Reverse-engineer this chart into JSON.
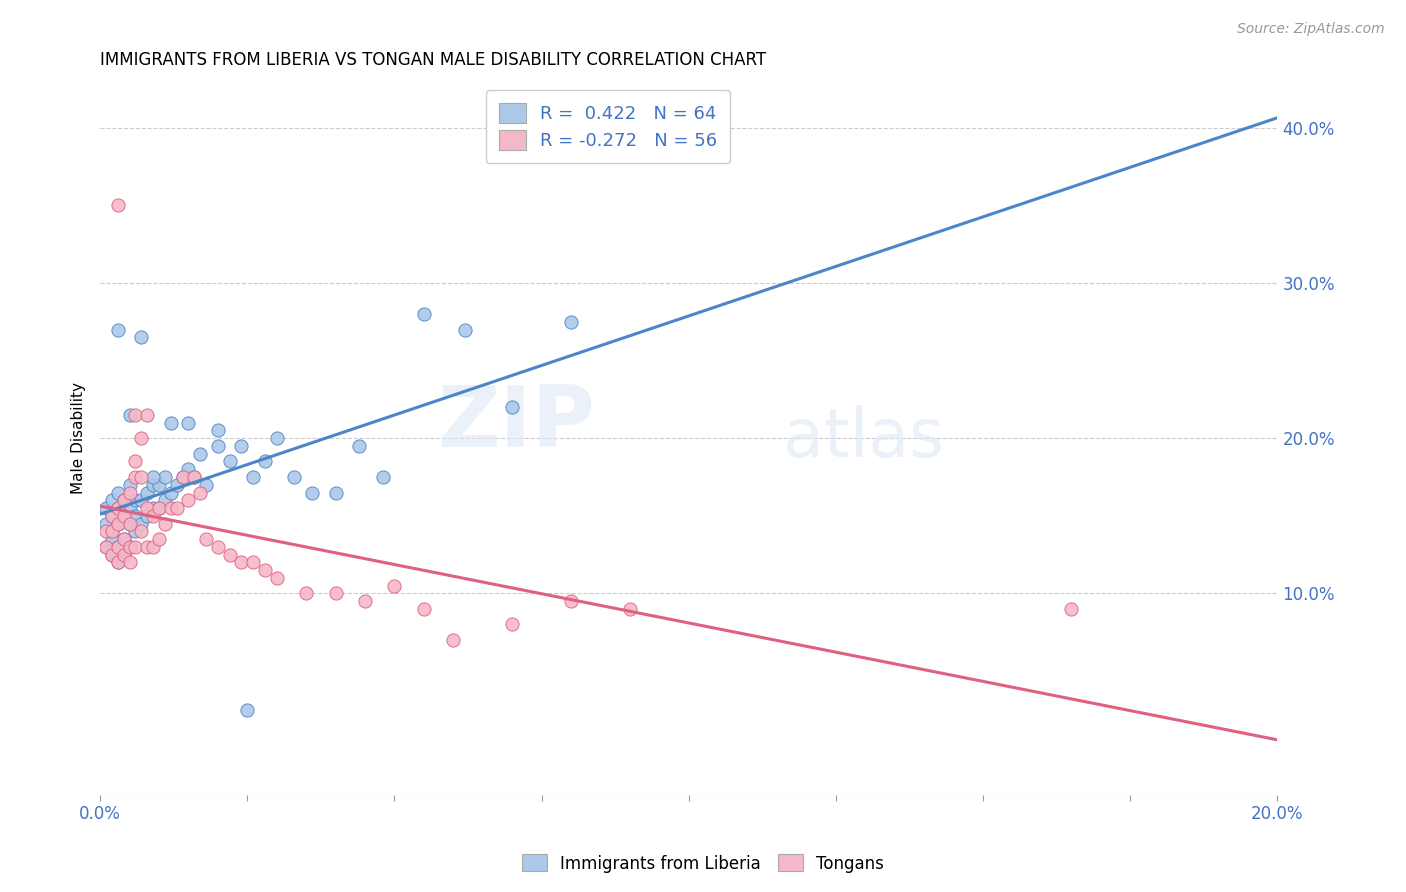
{
  "title": "IMMIGRANTS FROM LIBERIA VS TONGAN MALE DISABILITY CORRELATION CHART",
  "source": "Source: ZipAtlas.com",
  "ylabel": "Male Disability",
  "right_yticks": [
    "10.0%",
    "20.0%",
    "30.0%",
    "40.0%"
  ],
  "right_ytick_vals": [
    0.1,
    0.2,
    0.3,
    0.4
  ],
  "xlim": [
    0.0,
    0.2
  ],
  "ylim": [
    -0.03,
    0.43
  ],
  "blue_R": 0.422,
  "blue_N": 64,
  "pink_R": -0.272,
  "pink_N": 56,
  "blue_color": "#adc8e8",
  "pink_color": "#f5b8c8",
  "blue_line_color": "#4a86c8",
  "pink_line_color": "#e06080",
  "watermark_zip": "ZIP",
  "watermark_atlas": "atlas",
  "legend_label_blue": "Immigrants from Liberia",
  "legend_label_pink": "Tongans",
  "blue_x": [
    0.001,
    0.001,
    0.001,
    0.002,
    0.002,
    0.002,
    0.002,
    0.002,
    0.003,
    0.003,
    0.003,
    0.003,
    0.003,
    0.004,
    0.004,
    0.004,
    0.004,
    0.005,
    0.005,
    0.005,
    0.005,
    0.006,
    0.006,
    0.006,
    0.007,
    0.007,
    0.008,
    0.008,
    0.009,
    0.009,
    0.01,
    0.01,
    0.011,
    0.011,
    0.012,
    0.013,
    0.014,
    0.015,
    0.016,
    0.017,
    0.018,
    0.02,
    0.022,
    0.024,
    0.026,
    0.028,
    0.03,
    0.033,
    0.036,
    0.04,
    0.044,
    0.048,
    0.055,
    0.062,
    0.07,
    0.08,
    0.003,
    0.005,
    0.007,
    0.009,
    0.012,
    0.015,
    0.02,
    0.025
  ],
  "blue_y": [
    0.13,
    0.145,
    0.155,
    0.125,
    0.14,
    0.15,
    0.16,
    0.135,
    0.12,
    0.13,
    0.145,
    0.155,
    0.165,
    0.125,
    0.135,
    0.15,
    0.16,
    0.13,
    0.145,
    0.155,
    0.17,
    0.14,
    0.15,
    0.16,
    0.145,
    0.16,
    0.15,
    0.165,
    0.155,
    0.17,
    0.155,
    0.17,
    0.16,
    0.175,
    0.165,
    0.17,
    0.175,
    0.18,
    0.175,
    0.19,
    0.17,
    0.195,
    0.185,
    0.195,
    0.175,
    0.185,
    0.2,
    0.175,
    0.165,
    0.165,
    0.195,
    0.175,
    0.28,
    0.27,
    0.22,
    0.275,
    0.27,
    0.215,
    0.265,
    0.175,
    0.21,
    0.21,
    0.205,
    0.025
  ],
  "pink_x": [
    0.001,
    0.001,
    0.002,
    0.002,
    0.002,
    0.003,
    0.003,
    0.003,
    0.003,
    0.004,
    0.004,
    0.004,
    0.004,
    0.005,
    0.005,
    0.005,
    0.005,
    0.006,
    0.006,
    0.006,
    0.007,
    0.007,
    0.007,
    0.008,
    0.008,
    0.009,
    0.009,
    0.01,
    0.01,
    0.011,
    0.012,
    0.013,
    0.014,
    0.015,
    0.016,
    0.017,
    0.018,
    0.02,
    0.022,
    0.024,
    0.026,
    0.028,
    0.03,
    0.035,
    0.04,
    0.045,
    0.05,
    0.055,
    0.06,
    0.07,
    0.08,
    0.09,
    0.003,
    0.006,
    0.008,
    0.165
  ],
  "pink_y": [
    0.13,
    0.14,
    0.125,
    0.14,
    0.15,
    0.12,
    0.13,
    0.145,
    0.155,
    0.125,
    0.135,
    0.15,
    0.16,
    0.12,
    0.13,
    0.145,
    0.165,
    0.13,
    0.175,
    0.185,
    0.14,
    0.175,
    0.2,
    0.13,
    0.155,
    0.13,
    0.15,
    0.135,
    0.155,
    0.145,
    0.155,
    0.155,
    0.175,
    0.16,
    0.175,
    0.165,
    0.135,
    0.13,
    0.125,
    0.12,
    0.12,
    0.115,
    0.11,
    0.1,
    0.1,
    0.095,
    0.105,
    0.09,
    0.07,
    0.08,
    0.095,
    0.09,
    0.35,
    0.215,
    0.215,
    0.09
  ]
}
